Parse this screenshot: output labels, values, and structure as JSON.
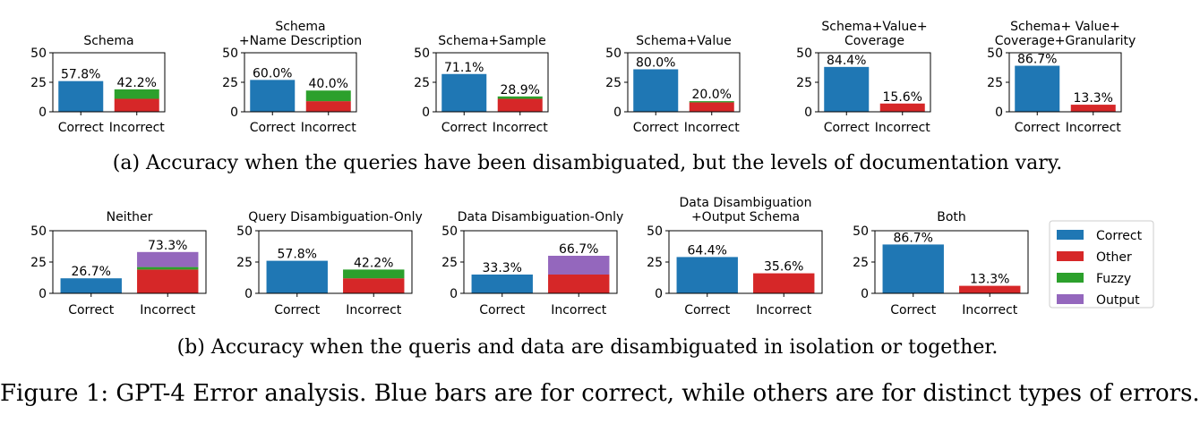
{
  "legend": {
    "items": [
      {
        "label": "Correct",
        "color": "#1f77b4"
      },
      {
        "label": "Other",
        "color": "#d62728"
      },
      {
        "label": "Fuzzy",
        "color": "#2ca02c"
      },
      {
        "label": "Output",
        "color": "#9467bd"
      }
    ]
  },
  "captions": {
    "a": "(a) Accuracy when the queries have been disambiguated, but the levels of documentation vary.",
    "b": "(b) Accuracy when the queris and data are disambiguated in isolation or together.",
    "figure": "Figure 1: GPT-4 Error analysis. Blue bars are for correct, while others are for distinct types of errors."
  },
  "chart_data": [
    {
      "type": "bar",
      "row": "a",
      "title": [
        "Schema"
      ],
      "categories": [
        "Correct",
        "Incorrect"
      ],
      "yticks": [
        0,
        25,
        50
      ],
      "ylim": [
        0,
        50
      ],
      "series": [
        {
          "name": "Correct",
          "values": [
            26,
            0
          ]
        },
        {
          "name": "Other",
          "values": [
            0,
            11
          ]
        },
        {
          "name": "Fuzzy",
          "values": [
            0,
            8
          ]
        },
        {
          "name": "Output",
          "values": [
            0,
            0
          ]
        }
      ],
      "labels": [
        "57.8%",
        "42.2%"
      ]
    },
    {
      "type": "bar",
      "row": "a",
      "title": [
        "Schema",
        "+Name Description"
      ],
      "categories": [
        "Correct",
        "Incorrect"
      ],
      "yticks": [
        0,
        25,
        50
      ],
      "ylim": [
        0,
        50
      ],
      "series": [
        {
          "name": "Correct",
          "values": [
            27,
            0
          ]
        },
        {
          "name": "Other",
          "values": [
            0,
            9
          ]
        },
        {
          "name": "Fuzzy",
          "values": [
            0,
            9
          ]
        },
        {
          "name": "Output",
          "values": [
            0,
            0
          ]
        }
      ],
      "labels": [
        "60.0%",
        "40.0%"
      ]
    },
    {
      "type": "bar",
      "row": "a",
      "title": [
        "Schema+Sample"
      ],
      "categories": [
        "Correct",
        "Incorrect"
      ],
      "yticks": [
        0,
        25,
        50
      ],
      "ylim": [
        0,
        50
      ],
      "series": [
        {
          "name": "Correct",
          "values": [
            32,
            0
          ]
        },
        {
          "name": "Other",
          "values": [
            0,
            11
          ]
        },
        {
          "name": "Fuzzy",
          "values": [
            0,
            2
          ]
        },
        {
          "name": "Output",
          "values": [
            0,
            0
          ]
        }
      ],
      "labels": [
        "71.1%",
        "28.9%"
      ]
    },
    {
      "type": "bar",
      "row": "a",
      "title": [
        "Schema+Value"
      ],
      "categories": [
        "Correct",
        "Incorrect"
      ],
      "yticks": [
        0,
        25,
        50
      ],
      "ylim": [
        0,
        50
      ],
      "series": [
        {
          "name": "Correct",
          "values": [
            36,
            0
          ]
        },
        {
          "name": "Other",
          "values": [
            0,
            8
          ]
        },
        {
          "name": "Fuzzy",
          "values": [
            0,
            1
          ]
        },
        {
          "name": "Output",
          "values": [
            0,
            0
          ]
        }
      ],
      "labels": [
        "80.0%",
        "20.0%"
      ]
    },
    {
      "type": "bar",
      "row": "a",
      "title": [
        "Schema+Value+",
        "Coverage"
      ],
      "categories": [
        "Correct",
        "Incorrect"
      ],
      "yticks": [
        0,
        25,
        50
      ],
      "ylim": [
        0,
        50
      ],
      "series": [
        {
          "name": "Correct",
          "values": [
            38,
            0
          ]
        },
        {
          "name": "Other",
          "values": [
            0,
            7
          ]
        },
        {
          "name": "Fuzzy",
          "values": [
            0,
            0
          ]
        },
        {
          "name": "Output",
          "values": [
            0,
            0
          ]
        }
      ],
      "labels": [
        "84.4%",
        "15.6%"
      ]
    },
    {
      "type": "bar",
      "row": "a",
      "title": [
        "Schema+ Value+",
        "Coverage+Granularity"
      ],
      "categories": [
        "Correct",
        "Incorrect"
      ],
      "yticks": [
        0,
        25,
        50
      ],
      "ylim": [
        0,
        50
      ],
      "series": [
        {
          "name": "Correct",
          "values": [
            39,
            0
          ]
        },
        {
          "name": "Other",
          "values": [
            0,
            6
          ]
        },
        {
          "name": "Fuzzy",
          "values": [
            0,
            0
          ]
        },
        {
          "name": "Output",
          "values": [
            0,
            0
          ]
        }
      ],
      "labels": [
        "86.7%",
        "13.3%"
      ]
    },
    {
      "type": "bar",
      "row": "b",
      "title": [
        "Neither"
      ],
      "categories": [
        "Correct",
        "Incorrect"
      ],
      "yticks": [
        0,
        25,
        50
      ],
      "ylim": [
        0,
        50
      ],
      "series": [
        {
          "name": "Correct",
          "values": [
            12,
            0
          ]
        },
        {
          "name": "Other",
          "values": [
            0,
            19
          ]
        },
        {
          "name": "Fuzzy",
          "values": [
            0,
            2
          ]
        },
        {
          "name": "Output",
          "values": [
            0,
            12
          ]
        }
      ],
      "labels": [
        "26.7%",
        "73.3%"
      ]
    },
    {
      "type": "bar",
      "row": "b",
      "title": [
        "Query Disambiguation-Only"
      ],
      "categories": [
        "Correct",
        "Incorrect"
      ],
      "yticks": [
        0,
        25,
        50
      ],
      "ylim": [
        0,
        50
      ],
      "series": [
        {
          "name": "Correct",
          "values": [
            26,
            0
          ]
        },
        {
          "name": "Other",
          "values": [
            0,
            12
          ]
        },
        {
          "name": "Fuzzy",
          "values": [
            0,
            7
          ]
        },
        {
          "name": "Output",
          "values": [
            0,
            0
          ]
        }
      ],
      "labels": [
        "57.8%",
        "42.2%"
      ]
    },
    {
      "type": "bar",
      "row": "b",
      "title": [
        "Data Disambiguation-Only"
      ],
      "categories": [
        "Correct",
        "Incorrect"
      ],
      "yticks": [
        0,
        25,
        50
      ],
      "ylim": [
        0,
        50
      ],
      "series": [
        {
          "name": "Correct",
          "values": [
            15,
            0
          ]
        },
        {
          "name": "Other",
          "values": [
            0,
            15
          ]
        },
        {
          "name": "Fuzzy",
          "values": [
            0,
            0
          ]
        },
        {
          "name": "Output",
          "values": [
            0,
            15
          ]
        }
      ],
      "labels": [
        "33.3%",
        "66.7%"
      ]
    },
    {
      "type": "bar",
      "row": "b",
      "title": [
        "Data Disambiguation",
        "+Output Schema"
      ],
      "categories": [
        "Correct",
        "Incorrect"
      ],
      "yticks": [
        0,
        25,
        50
      ],
      "ylim": [
        0,
        50
      ],
      "series": [
        {
          "name": "Correct",
          "values": [
            29,
            0
          ]
        },
        {
          "name": "Other",
          "values": [
            0,
            16
          ]
        },
        {
          "name": "Fuzzy",
          "values": [
            0,
            0
          ]
        },
        {
          "name": "Output",
          "values": [
            0,
            0
          ]
        }
      ],
      "labels": [
        "64.4%",
        "35.6%"
      ]
    },
    {
      "type": "bar",
      "row": "b",
      "title": [
        "Both"
      ],
      "categories": [
        "Correct",
        "Incorrect"
      ],
      "yticks": [
        0,
        25,
        50
      ],
      "ylim": [
        0,
        50
      ],
      "series": [
        {
          "name": "Correct",
          "values": [
            39,
            0
          ]
        },
        {
          "name": "Other",
          "values": [
            0,
            6
          ]
        },
        {
          "name": "Fuzzy",
          "values": [
            0,
            0
          ]
        },
        {
          "name": "Output",
          "values": [
            0,
            0
          ]
        }
      ],
      "labels": [
        "86.7%",
        "13.3%"
      ]
    }
  ]
}
